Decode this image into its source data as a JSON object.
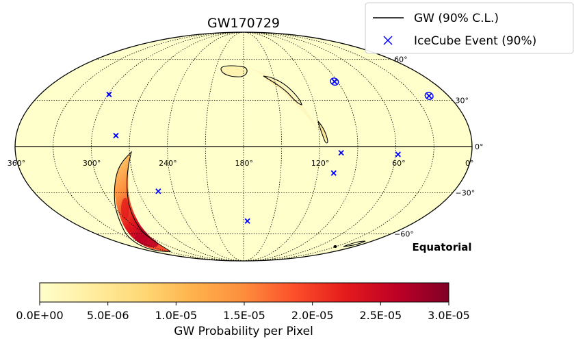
{
  "chart_data": {
    "type": "scatter",
    "title": "GW170729",
    "projection": "Mollweide (equatorial), RA increasing to the left",
    "frame_label": "Equatorial",
    "legend": {
      "placement": "top-right",
      "gw_label": "GW (90% C.L.)",
      "icecube_label": "IceCube Event (90%)"
    },
    "ra_tick_labels": [
      {
        "ra": 360,
        "label": "360°"
      },
      {
        "ra": 300,
        "label": "300°"
      },
      {
        "ra": 240,
        "label": "240°"
      },
      {
        "ra": 180,
        "label": "180°"
      },
      {
        "ra": 120,
        "label": "120°"
      },
      {
        "ra": 60,
        "label": "60°"
      },
      {
        "ra": 0,
        "label": "0°"
      }
    ],
    "dec_tick_labels": [
      {
        "dec": 60,
        "label": "60°"
      },
      {
        "dec": 30,
        "label": "30°"
      },
      {
        "dec": 0,
        "label": "0°"
      },
      {
        "dec": -30,
        "label": "−30°"
      },
      {
        "dec": -60,
        "label": "−60°"
      }
    ],
    "grid": true,
    "grid_ra_step": 30,
    "grid_dec_step": 30,
    "icecube_events": [
      {
        "ra": 299,
        "dec": 34
      },
      {
        "ra": 281,
        "dec": 7
      },
      {
        "ra": 253,
        "dec": -29
      },
      {
        "ra": 176,
        "dec": -50
      },
      {
        "ra": 107,
        "dec": -17
      },
      {
        "ra": 103,
        "dec": -4
      },
      {
        "ra": 93,
        "dec": 43
      },
      {
        "ra": 58,
        "dec": -5
      },
      {
        "ra": 17,
        "dec": 33
      }
    ],
    "icecube_regions": [
      {
        "ra": 93,
        "dec": 43
      },
      {
        "ra": 17,
        "dec": 33
      }
    ],
    "gw_probability_regions": [
      {
        "name": "main-south-arc",
        "peak": 3e-05
      },
      {
        "name": "north-blob",
        "peak": 2e-06
      },
      {
        "name": "north-arc",
        "peak": 2e-06
      },
      {
        "name": "equatorial-sliver",
        "peak": 1e-06
      },
      {
        "name": "south-sliver",
        "peak": 1e-06
      }
    ],
    "colorbar": {
      "label": "GW Probability per Pixel",
      "min": 0.0,
      "max": 3e-05,
      "colormap": "YlOrRd",
      "ticks": [
        "0.0E+00",
        "5.0E-06",
        "1.0E-05",
        "1.5E-05",
        "2.0E-05",
        "2.5E-05",
        "3.0E-05"
      ]
    },
    "colors": {
      "background": "#ffffcc",
      "contour": "#000000",
      "icecube": "#0000ff",
      "grid": "#000000"
    }
  }
}
